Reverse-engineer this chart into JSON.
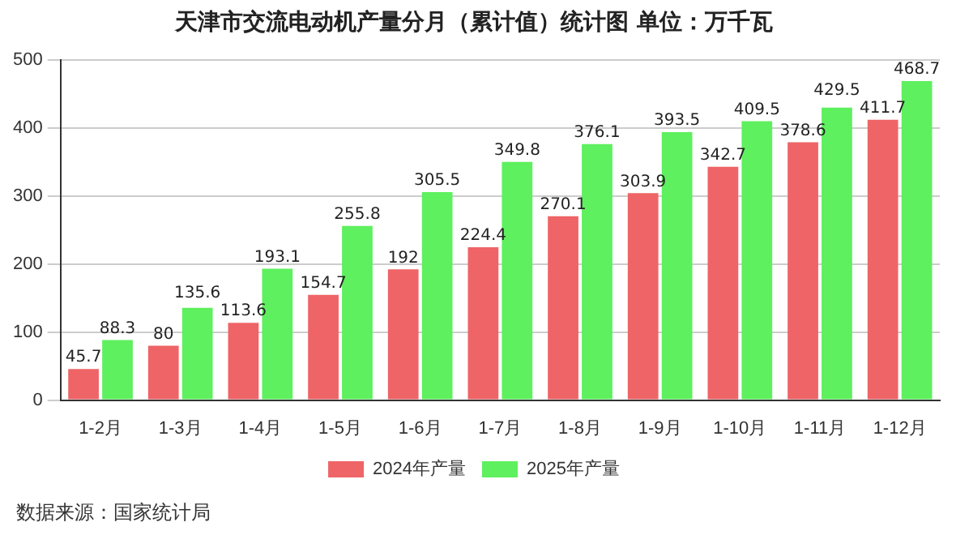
{
  "chart_data": {
    "type": "bar",
    "title": "天津市交流电动机产量分月（累计值）统计图 单位：万千瓦",
    "categories": [
      "1-2月",
      "1-3月",
      "1-4月",
      "1-5月",
      "1-6月",
      "1-7月",
      "1-8月",
      "1-9月",
      "1-10月",
      "1-11月",
      "1-12月"
    ],
    "series": [
      {
        "name": "2024年产量",
        "color": "#ef6466",
        "values": [
          45.7,
          80,
          113.6,
          154.7,
          192,
          224.4,
          270.1,
          303.9,
          342.7,
          378.6,
          411.7
        ]
      },
      {
        "name": "2025年产量",
        "color": "#5ef05e",
        "values": [
          88.3,
          135.6,
          193.1,
          255.8,
          305.5,
          349.8,
          376.1,
          393.5,
          409.5,
          429.5,
          468.7
        ]
      }
    ],
    "ylim": [
      0,
      500
    ],
    "yticks": [
      0,
      100,
      200,
      300,
      400,
      500
    ],
    "grid": "y",
    "legend": "bottom",
    "data_labels": true,
    "annotations": [
      "数据来源：国家统计局"
    ]
  }
}
